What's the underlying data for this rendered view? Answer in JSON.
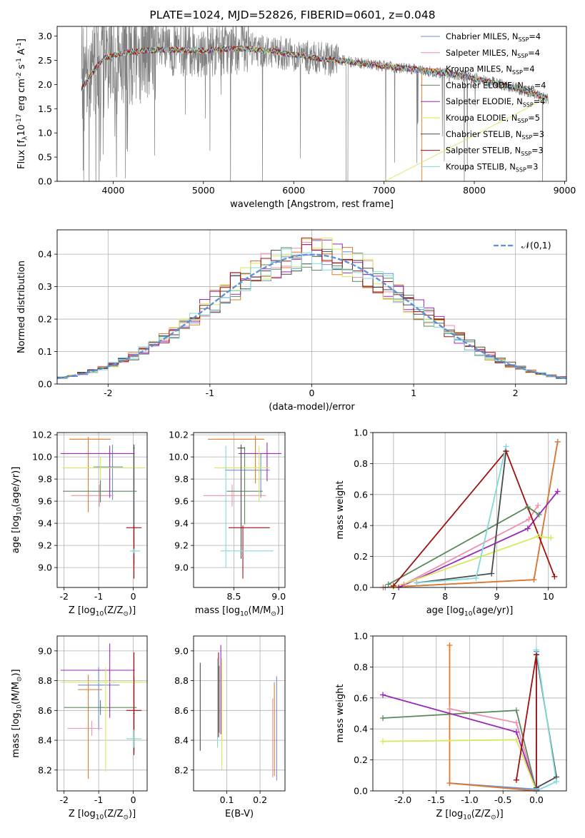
{
  "figure_title": "PLATE=1024, MJD=52826, FIBERID=0601, z=0.048",
  "colors": [
    "#6a8fdd",
    "#ee8fb0",
    "#e07a2a",
    "#5a8a5a",
    "#9a28b8",
    "#d8e85a",
    "#4a4a4a",
    "#a01010",
    "#80dada"
  ],
  "chart_data": [
    {
      "id": "spectrum",
      "type": "line",
      "xlabel": "wavelength [Angstrom, rest frame]",
      "ylabel": "Flux [f$_\\lambda$10$^{-17}$ erg cm$^{-2}$ s$^{-1}$ A$^{-1}$]",
      "xlim": [
        3380,
        9020
      ],
      "ylim": [
        0,
        3.2
      ],
      "xticks": [
        4000,
        5000,
        6000,
        7000,
        8000,
        9000
      ],
      "yticks": [
        0.0,
        0.5,
        1.0,
        1.5,
        2.0,
        2.5,
        3.0
      ],
      "data_range": [
        3650,
        8820
      ],
      "continuum": {
        "x": [
          3650,
          3750,
          3900,
          4100,
          4300,
          4600,
          5000,
          5400,
          5800,
          6200,
          6600,
          7000,
          7400,
          7800,
          8200,
          8600,
          8820
        ],
        "y": [
          1.9,
          2.2,
          2.55,
          2.65,
          2.7,
          2.72,
          2.7,
          2.75,
          2.68,
          2.55,
          2.48,
          2.38,
          2.3,
          2.2,
          2.05,
          1.85,
          1.7
        ]
      },
      "legend": [
        {
          "label": "Chabrier MILES",
          "ssp": "4"
        },
        {
          "label": "Salpeter MILES",
          "ssp": "4"
        },
        {
          "label": "Kroupa MILES",
          "ssp": "4"
        },
        {
          "label": "Chabrier ELODIE",
          "ssp": "4"
        },
        {
          "label": "Salpeter ELODIE",
          "ssp": "4"
        },
        {
          "label": "Kroupa ELODIE",
          "ssp": "5"
        },
        {
          "label": "Chabrier STELIB",
          "ssp": "3"
        },
        {
          "label": "Salpeter STELIB",
          "ssp": "3"
        },
        {
          "label": "Kroupa STELIB",
          "ssp": "3"
        }
      ],
      "legend_location": "right"
    },
    {
      "id": "residuals",
      "type": "line",
      "xlabel": "(data-model)/error",
      "ylabel": "Normed distribution",
      "xlim": [
        -2.5,
        2.5
      ],
      "ylim": [
        0,
        0.475
      ],
      "xticks": [
        -2,
        -1,
        0,
        1,
        2
      ],
      "yticks": [
        0.0,
        0.1,
        0.2,
        0.3,
        0.4
      ],
      "grid": true,
      "legend": [
        "$\\mathcal{N}(0,1)$"
      ],
      "legend_location": "top-right",
      "bin_width": 0.1
    },
    {
      "id": "age-vs-Z",
      "type": "scatter",
      "xlabel": "Z [log$_{10}$(Z/Z$_\\odot$)]",
      "ylabel": "age  [log$_{10}$(age/yr)]",
      "xlim": [
        -2.2,
        0.4
      ],
      "ylim": [
        8.82,
        10.22
      ],
      "xticks": [
        -2,
        -1,
        0
      ],
      "yticks": [
        9.0,
        9.2,
        9.4,
        9.6,
        9.8,
        10.0,
        10.2
      ],
      "grid": true,
      "points": [
        {
          "x": -0.6,
          "y": 9.91,
          "xerr": [
            0.55,
            0.3
          ],
          "yerr": [
            0.3,
            0.2
          ]
        },
        {
          "x": -0.98,
          "y": 9.65,
          "xerr": [
            0.82,
            0.4
          ],
          "yerr": [
            0.1,
            0.1
          ]
        },
        {
          "x": -1.3,
          "y": 10.16,
          "xerr": [
            0.55,
            0.65
          ],
          "yerr": [
            0.66,
            0.02
          ]
        },
        {
          "x": -0.95,
          "y": 9.69,
          "xerr": [
            1.08,
            1.05
          ],
          "yerr": [
            0.1,
            0.1
          ]
        },
        {
          "x": -0.68,
          "y": 10.03,
          "xerr": [
            1.42,
            0.72
          ],
          "yerr": [
            0.4,
            0.07
          ]
        },
        {
          "x": -0.95,
          "y": 9.9,
          "xerr": [
            1.1,
            1.3
          ],
          "yerr": [
            0.1,
            0.1
          ]
        },
        {
          "x": 0.02,
          "y": 10.08,
          "xerr": [
            0.02,
            0.02
          ],
          "yerr": [
            1.05,
            0.03
          ]
        },
        {
          "x": 0.02,
          "y": 9.36,
          "xerr": [
            0.22,
            0.22
          ],
          "yerr": [
            0.46,
            0.02
          ]
        },
        {
          "x": 0.02,
          "y": 9.15,
          "xerr": [
            0.12,
            0.18
          ],
          "yerr": [
            0.02,
            0.02
          ]
        }
      ]
    },
    {
      "id": "age-vs-mass",
      "type": "scatter",
      "xlabel": "mass [log$_{10}$(M/M$_\\odot$)]",
      "ylabel": "",
      "xlim": [
        8.05,
        9.07
      ],
      "ylim": [
        8.82,
        10.22
      ],
      "xticks": [
        8.5,
        9.0
      ],
      "yticks": [
        9.0,
        9.2,
        9.4,
        9.6,
        9.8,
        10.0,
        10.2
      ],
      "grid": true,
      "points": [
        {
          "x": 8.8,
          "y": 9.88,
          "xerr": [
            0.4,
            0.1
          ],
          "yerr": [
            0.25,
            0.15
          ]
        },
        {
          "x": 8.48,
          "y": 9.65,
          "xerr": [
            0.32,
            0.38
          ],
          "yerr": [
            0.1,
            0.1
          ]
        },
        {
          "x": 8.74,
          "y": 10.16,
          "xerr": [
            0.53,
            0.1
          ],
          "yerr": [
            0.4,
            0.03
          ]
        },
        {
          "x": 8.62,
          "y": 9.69,
          "xerr": [
            0.2,
            0.2
          ],
          "yerr": [
            0.3,
            0.4
          ]
        },
        {
          "x": 8.87,
          "y": 10.03,
          "xerr": [
            0.32,
            0.16
          ],
          "yerr": [
            0.25,
            0.1
          ]
        },
        {
          "x": 8.78,
          "y": 9.9,
          "xerr": [
            0.5,
            0.12
          ],
          "yerr": [
            0.3,
            0.2
          ]
        },
        {
          "x": 8.58,
          "y": 10.08,
          "xerr": [
            0.04,
            0.04
          ],
          "yerr": [
            1.0,
            0.03
          ]
        },
        {
          "x": 8.6,
          "y": 9.36,
          "xerr": [
            0.16,
            0.3
          ],
          "yerr": [
            0.46,
            0.02
          ]
        },
        {
          "x": 8.41,
          "y": 9.15,
          "xerr": [
            0.06,
            0.53
          ],
          "yerr": [
            0.15,
            0.95
          ]
        }
      ]
    },
    {
      "id": "weight-vs-age",
      "type": "line",
      "xlabel": "age  [log$_{10}$(age/yr)]",
      "ylabel": "mass weight",
      "xlim": [
        6.6,
        10.35
      ],
      "ylim": [
        0,
        1
      ],
      "xticks": [
        7,
        8,
        9,
        10
      ],
      "yticks": [
        0.0,
        0.2,
        0.4,
        0.6,
        0.8,
        1.0
      ],
      "grid": true,
      "series": [
        {
          "x": [
            6.84,
            9.72,
            10.18
          ],
          "y": [
            0.0,
            0.05,
            0.94
          ]
        },
        {
          "x": [
            7.2,
            9.62,
            9.8
          ],
          "y": [
            0.02,
            0.44,
            0.53
          ]
        },
        {
          "x": [
            6.8,
            9.72,
            10.18
          ],
          "y": [
            0.0,
            0.05,
            0.94
          ]
        },
        {
          "x": [
            6.9,
            9.6,
            9.82
          ],
          "y": [
            0.02,
            0.52,
            0.47
          ]
        },
        {
          "x": [
            7.1,
            9.6,
            10.18
          ],
          "y": [
            0.0,
            0.38,
            0.62
          ]
        },
        {
          "x": [
            7.0,
            9.8,
            10.05
          ],
          "y": [
            0.0,
            0.33,
            0.32
          ]
        },
        {
          "x": [
            7.45,
            8.9,
            9.18
          ],
          "y": [
            0.03,
            0.09,
            0.88
          ]
        },
        {
          "x": [
            7.0,
            9.18,
            10.12
          ],
          "y": [
            0.01,
            0.88,
            0.07
          ]
        },
        {
          "x": [
            7.45,
            8.6,
            9.18
          ],
          "y": [
            0.03,
            0.06,
            0.91
          ]
        }
      ]
    },
    {
      "id": "mass-vs-Z",
      "type": "scatter",
      "xlabel": "Z [log$_{10}$(Z/Z$_\\odot$)]",
      "ylabel": "mass [log$_{10}$(M/M$_\\odot$)]",
      "xlim": [
        -2.2,
        0.4
      ],
      "ylim": [
        8.06,
        9.1
      ],
      "xticks": [
        -2,
        -1,
        0
      ],
      "yticks": [
        8.2,
        8.4,
        8.6,
        8.8,
        9.0
      ],
      "grid": true,
      "points": [
        {
          "x": -1.0,
          "y": 8.77,
          "xerr": [
            0.6,
            0.6
          ],
          "yerr": [
            0.3,
            0.12
          ]
        },
        {
          "x": -1.2,
          "y": 8.48,
          "xerr": [
            0.7,
            0.3
          ],
          "yerr": [
            0.05,
            0.05
          ]
        },
        {
          "x": -1.3,
          "y": 8.74,
          "xerr": [
            0.3,
            0.4
          ],
          "yerr": [
            0.6,
            0.1
          ]
        },
        {
          "x": -0.95,
          "y": 8.62,
          "xerr": [
            1.05,
            1.05
          ],
          "yerr": [
            0.05,
            0.05
          ]
        },
        {
          "x": -0.68,
          "y": 8.87,
          "xerr": [
            1.42,
            0.72
          ],
          "yerr": [
            0.32,
            0.18
          ]
        },
        {
          "x": -0.8,
          "y": 8.79,
          "xerr": [
            1.3,
            1.2
          ],
          "yerr": [
            0.6,
            0.1
          ]
        },
        {
          "x": 0.02,
          "y": 8.58,
          "xerr": [
            0.02,
            0.02
          ],
          "yerr": [
            0.25,
            0.25
          ]
        },
        {
          "x": 0.02,
          "y": 8.6,
          "xerr": [
            0.22,
            0.22
          ],
          "yerr": [
            0.3,
            0.39
          ]
        },
        {
          "x": 0.02,
          "y": 8.41,
          "xerr": [
            0.22,
            0.22
          ],
          "yerr": [
            0.06,
            0.06
          ]
        }
      ]
    },
    {
      "id": "mass-vs-ebv",
      "type": "scatter",
      "xlabel": "E(B-V)",
      "ylabel": "",
      "xlim": [
        0.0,
        0.275
      ],
      "ylim": [
        8.06,
        9.1
      ],
      "xticks": [
        0.1,
        0.2
      ],
      "yticks": [
        8.2,
        8.4,
        8.6,
        8.8,
        9.0
      ],
      "grid": true,
      "points": [
        {
          "x": 0.25,
          "y": 8.48,
          "yerr": [
            0.35,
            0.35
          ]
        },
        {
          "x": 0.238,
          "y": 8.45,
          "yerr": [
            0.3,
            0.23
          ]
        },
        {
          "x": 0.243,
          "y": 8.49,
          "yerr": [
            0.33,
            0.3
          ]
        },
        {
          "x": 0.077,
          "y": 8.6,
          "yerr": [
            0.15,
            0.3
          ]
        },
        {
          "x": 0.082,
          "y": 8.74,
          "yerr": [
            0.3,
            0.3
          ]
        },
        {
          "x": 0.085,
          "y": 8.6,
          "yerr": [
            0.4,
            0.35
          ]
        },
        {
          "x": 0.02,
          "y": 8.6,
          "yerr": [
            0.27,
            0.32
          ]
        },
        {
          "x": 0.075,
          "y": 8.7,
          "yerr": [
            0.28,
            0.29
          ]
        },
        {
          "x": 0.072,
          "y": 8.65,
          "yerr": [
            0.3,
            0.3
          ]
        }
      ]
    },
    {
      "id": "weight-vs-Z",
      "type": "line",
      "xlabel": "Z [log$_{10}$(Z/Z$_\\odot$)]",
      "ylabel": "mass weight",
      "xlim": [
        -2.45,
        0.45
      ],
      "ylim": [
        0,
        1
      ],
      "xticks": [
        -2.0,
        -1.5,
        -1.0,
        -0.5,
        0.0
      ],
      "yticks": [
        0.0,
        0.2,
        0.4,
        0.6,
        0.8,
        1.0
      ],
      "grid": true,
      "series": [
        {
          "x": [
            -1.3,
            0.0,
            0.0
          ],
          "y": [
            0.05,
            0.01,
            0.9
          ]
        },
        {
          "x": [
            -1.3,
            -0.3,
            0.0
          ],
          "y": [
            0.53,
            0.44,
            0.0
          ]
        },
        {
          "x": [
            -1.3,
            -1.3,
            0.0
          ],
          "y": [
            0.94,
            0.05,
            0.0
          ]
        },
        {
          "x": [
            -2.3,
            -0.3,
            0.0
          ],
          "y": [
            0.47,
            0.52,
            0.0
          ]
        },
        {
          "x": [
            -2.3,
            -0.3,
            0.0
          ],
          "y": [
            0.62,
            0.38,
            0.0
          ]
        },
        {
          "x": [
            -2.3,
            -0.3,
            0.0
          ],
          "y": [
            0.32,
            0.33,
            0.0
          ]
        },
        {
          "x": [
            0.0,
            0.3,
            0.0
          ],
          "y": [
            0.88,
            0.09,
            0.02
          ]
        },
        {
          "x": [
            -0.3,
            0.0,
            0.0
          ],
          "y": [
            0.07,
            0.88,
            0.0
          ]
        },
        {
          "x": [
            0.0,
            0.3,
            0.0
          ],
          "y": [
            0.91,
            0.06,
            0.0
          ]
        }
      ]
    }
  ]
}
